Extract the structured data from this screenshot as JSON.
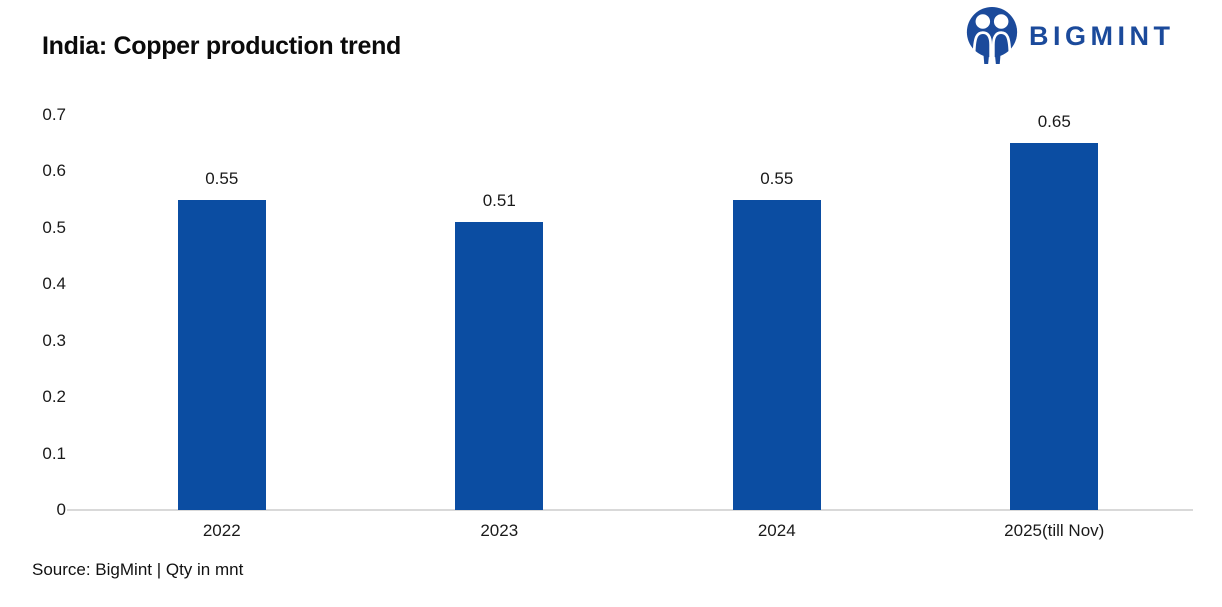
{
  "header": {
    "title": "India: Copper production trend",
    "logo": {
      "text": "BIGMINT",
      "color": "#1b4a9b"
    }
  },
  "chart_data": {
    "type": "bar",
    "title": "India: Copper production trend",
    "categories": [
      "2022",
      "2023",
      "2024",
      "2025(till Nov)"
    ],
    "values": [
      0.55,
      0.51,
      0.55,
      0.65
    ],
    "data_labels": [
      "0.55",
      "0.51",
      "0.55",
      "0.65"
    ],
    "xlabel": "",
    "ylabel": "",
    "ylim": [
      0,
      0.7
    ],
    "yticks": [
      "0",
      "0.1",
      "0.2",
      "0.3",
      "0.4",
      "0.5",
      "0.6",
      "0.7"
    ],
    "bar_color": "#0b4da2",
    "axis_line_color": "#d9d9d9",
    "grid": false,
    "legend": false
  },
  "footer": {
    "source_note": "Source: BigMint | Qty in mnt"
  }
}
